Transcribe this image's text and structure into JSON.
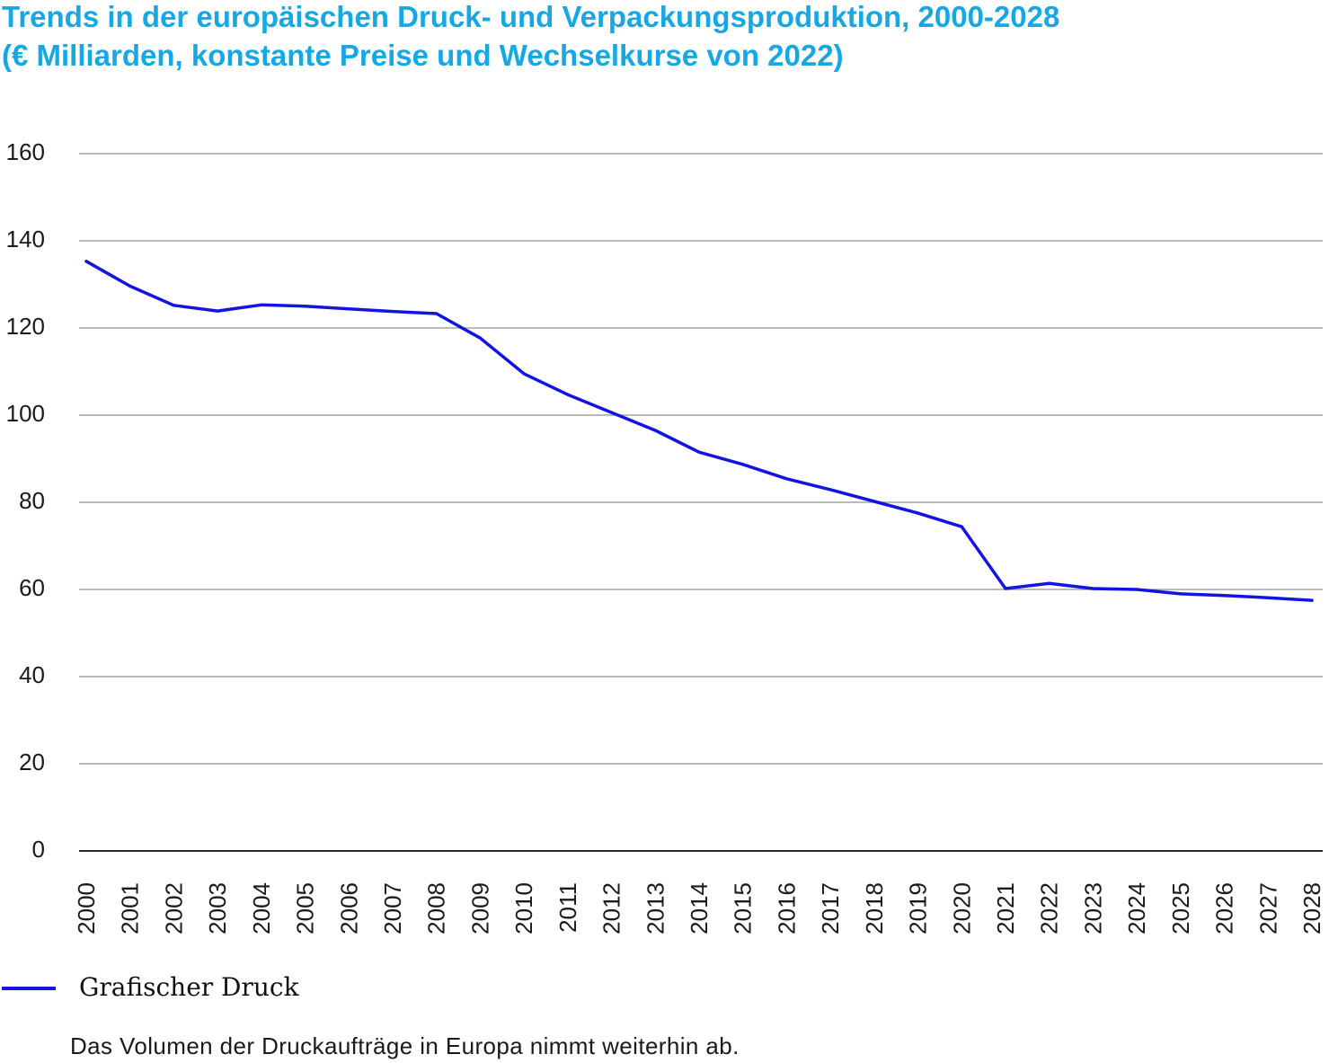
{
  "colors": {
    "title": "#17a8e3",
    "series": "#1414e0",
    "grid": "#a3a3a3",
    "axis": "#2b2b2b",
    "text": "#1a1a1a"
  },
  "note": "Das Volumen der Druckaufträge in Europa nimmt weiterhin ab.",
  "chart_data": {
    "type": "line",
    "title": "Trends in der europäischen Druck- und Verpackungsproduktion, 2000-2028",
    "subtitle": "(€ Milliarden, konstante Preise und Wechselkurse von 2022)",
    "xlabel": "",
    "ylabel": "",
    "categories": [
      "2000",
      "2001",
      "2002",
      "2003",
      "2004",
      "2005",
      "2006",
      "2007",
      "2008",
      "2009",
      "2010",
      "2011",
      "2012",
      "2013",
      "2014",
      "2015",
      "2016",
      "2017",
      "2018",
      "2019",
      "2020",
      "2021",
      "2022",
      "2023",
      "2024",
      "2025",
      "2026",
      "2027",
      "2028"
    ],
    "series": [
      {
        "name": "Grafischer Druck",
        "values": [
          135.3,
          129.6,
          125.2,
          123.9,
          125.3,
          125.0,
          124.4,
          123.8,
          123.3,
          117.7,
          109.5,
          104.7,
          100.6,
          96.5,
          91.5,
          88.7,
          85.4,
          82.9,
          80.2,
          77.5,
          74.4,
          60.2,
          61.4,
          60.2,
          60.0,
          59.0,
          58.6,
          58.1,
          57.5
        ]
      }
    ],
    "yticks": [
      0,
      20,
      40,
      60,
      80,
      100,
      120,
      140,
      160
    ],
    "ylim": [
      0,
      160
    ],
    "grid": true,
    "legend": "bottom-left"
  }
}
